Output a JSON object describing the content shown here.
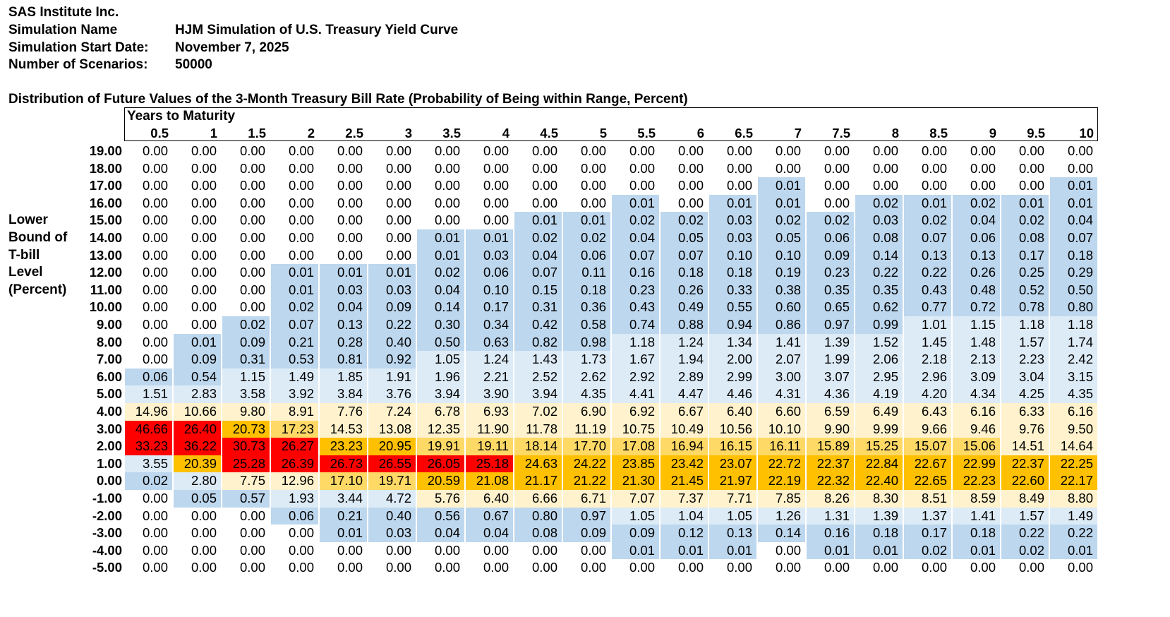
{
  "header": {
    "company": "SAS Institute Inc.",
    "fields": [
      {
        "label": "Simulation Name",
        "value": "HJM Simulation of U.S. Treasury Yield Curve"
      },
      {
        "label": "Simulation Start Date:",
        "value": "November 7, 2025"
      },
      {
        "label": "Number of Scenarios:",
        "value": "50000"
      }
    ]
  },
  "table": {
    "title": "Distribution of Future Values of the 3-Month Treasury Bill Rate (Probability of Being within Range, Percent)",
    "column_header": "Years to Maturity",
    "columns": [
      "0.5",
      "1",
      "1.5",
      "2",
      "2.5",
      "3",
      "3.5",
      "4",
      "4.5",
      "5",
      "5.5",
      "6",
      "6.5",
      "7",
      "7.5",
      "8",
      "8.5",
      "9",
      "9.5",
      "10"
    ],
    "row_header": [
      "Lower",
      "Bound of",
      "T-bill",
      "Level",
      "(Percent)"
    ],
    "color_scale": [
      {
        "min": 25,
        "color": "#ff0000"
      },
      {
        "min": 20,
        "color": "#ffc000"
      },
      {
        "min": 15,
        "color": "#ffd966"
      },
      {
        "min": 5,
        "color": "#fff2cc"
      },
      {
        "min": 1,
        "color": "#ddebf7"
      },
      {
        "min": 0.005,
        "color": "#bdd7ee"
      },
      {
        "min": 0,
        "color": "#ffffff"
      }
    ],
    "rows": [
      {
        "label": "19.00",
        "cells": [
          "0.00",
          "0.00",
          "0.00",
          "0.00",
          "0.00",
          "0.00",
          "0.00",
          "0.00",
          "0.00",
          "0.00",
          "0.00",
          "0.00",
          "0.00",
          "0.00",
          "0.00",
          "0.00",
          "0.00",
          "0.00",
          "0.00",
          "0.00"
        ]
      },
      {
        "label": "18.00",
        "cells": [
          "0.00",
          "0.00",
          "0.00",
          "0.00",
          "0.00",
          "0.00",
          "0.00",
          "0.00",
          "0.00",
          "0.00",
          "0.00",
          "0.00",
          "0.00",
          "0.00",
          "0.00",
          "0.00",
          "0.00",
          "0.00",
          "0.00",
          "0.00"
        ]
      },
      {
        "label": "17.00",
        "cells": [
          "0.00",
          "0.00",
          "0.00",
          "0.00",
          "0.00",
          "0.00",
          "0.00",
          "0.00",
          "0.00",
          "0.00",
          "0.00",
          "0.00",
          "0.00",
          "0.01",
          "0.00",
          "0.00",
          "0.00",
          "0.00",
          "0.00",
          "0.01"
        ]
      },
      {
        "label": "16.00",
        "cells": [
          "0.00",
          "0.00",
          "0.00",
          "0.00",
          "0.00",
          "0.00",
          "0.00",
          "0.00",
          "0.00",
          "0.00",
          "0.01",
          "0.00",
          "0.01",
          "0.01",
          "0.00",
          "0.02",
          "0.01",
          "0.02",
          "0.01",
          "0.01"
        ]
      },
      {
        "label": "15.00",
        "cells": [
          "0.00",
          "0.00",
          "0.00",
          "0.00",
          "0.00",
          "0.00",
          "0.00",
          "0.00",
          "0.01",
          "0.01",
          "0.02",
          "0.02",
          "0.03",
          "0.02",
          "0.02",
          "0.03",
          "0.02",
          "0.04",
          "0.02",
          "0.04"
        ]
      },
      {
        "label": "14.00",
        "cells": [
          "0.00",
          "0.00",
          "0.00",
          "0.00",
          "0.00",
          "0.00",
          "0.01",
          "0.01",
          "0.02",
          "0.02",
          "0.04",
          "0.05",
          "0.03",
          "0.05",
          "0.06",
          "0.08",
          "0.07",
          "0.06",
          "0.08",
          "0.07"
        ]
      },
      {
        "label": "13.00",
        "cells": [
          "0.00",
          "0.00",
          "0.00",
          "0.00",
          "0.00",
          "0.00",
          "0.01",
          "0.03",
          "0.04",
          "0.06",
          "0.07",
          "0.07",
          "0.10",
          "0.10",
          "0.09",
          "0.14",
          "0.13",
          "0.13",
          "0.17",
          "0.18"
        ]
      },
      {
        "label": "12.00",
        "cells": [
          "0.00",
          "0.00",
          "0.00",
          "0.01",
          "0.01",
          "0.01",
          "0.02",
          "0.06",
          "0.07",
          "0.11",
          "0.16",
          "0.18",
          "0.18",
          "0.19",
          "0.23",
          "0.22",
          "0.22",
          "0.26",
          "0.25",
          "0.29"
        ]
      },
      {
        "label": "11.00",
        "cells": [
          "0.00",
          "0.00",
          "0.00",
          "0.01",
          "0.03",
          "0.03",
          "0.04",
          "0.10",
          "0.15",
          "0.18",
          "0.23",
          "0.26",
          "0.33",
          "0.38",
          "0.35",
          "0.35",
          "0.43",
          "0.48",
          "0.52",
          "0.50"
        ]
      },
      {
        "label": "10.00",
        "cells": [
          "0.00",
          "0.00",
          "0.00",
          "0.02",
          "0.04",
          "0.09",
          "0.14",
          "0.17",
          "0.31",
          "0.36",
          "0.43",
          "0.49",
          "0.55",
          "0.60",
          "0.65",
          "0.62",
          "0.77",
          "0.72",
          "0.78",
          "0.80"
        ]
      },
      {
        "label": "9.00",
        "cells": [
          "0.00",
          "0.00",
          "0.02",
          "0.07",
          "0.13",
          "0.22",
          "0.30",
          "0.34",
          "0.42",
          "0.58",
          "0.74",
          "0.88",
          "0.94",
          "0.86",
          "0.97",
          "0.99",
          "1.01",
          "1.15",
          "1.18",
          "1.18"
        ]
      },
      {
        "label": "8.00",
        "cells": [
          "0.00",
          "0.01",
          "0.09",
          "0.21",
          "0.28",
          "0.40",
          "0.50",
          "0.63",
          "0.82",
          "0.98",
          "1.18",
          "1.24",
          "1.34",
          "1.41",
          "1.39",
          "1.52",
          "1.45",
          "1.48",
          "1.57",
          "1.74"
        ]
      },
      {
        "label": "7.00",
        "cells": [
          "0.00",
          "0.09",
          "0.31",
          "0.53",
          "0.81",
          "0.92",
          "1.05",
          "1.24",
          "1.43",
          "1.73",
          "1.67",
          "1.94",
          "2.00",
          "2.07",
          "1.99",
          "2.06",
          "2.18",
          "2.13",
          "2.23",
          "2.42"
        ]
      },
      {
        "label": "6.00",
        "cells": [
          "0.06",
          "0.54",
          "1.15",
          "1.49",
          "1.85",
          "1.91",
          "1.96",
          "2.21",
          "2.52",
          "2.62",
          "2.92",
          "2.89",
          "2.99",
          "3.00",
          "3.07",
          "2.95",
          "2.96",
          "3.09",
          "3.04",
          "3.15"
        ]
      },
      {
        "label": "5.00",
        "cells": [
          "1.51",
          "2.83",
          "3.58",
          "3.92",
          "3.84",
          "3.76",
          "3.94",
          "3.90",
          "3.94",
          "4.35",
          "4.41",
          "4.47",
          "4.46",
          "4.31",
          "4.36",
          "4.19",
          "4.20",
          "4.34",
          "4.25",
          "4.35"
        ]
      },
      {
        "label": "4.00",
        "cells": [
          "14.96",
          "10.66",
          "9.80",
          "8.91",
          "7.76",
          "7.24",
          "6.78",
          "6.93",
          "7.02",
          "6.90",
          "6.92",
          "6.67",
          "6.40",
          "6.60",
          "6.59",
          "6.49",
          "6.43",
          "6.16",
          "6.33",
          "6.16"
        ]
      },
      {
        "label": "3.00",
        "cells": [
          "46.66",
          "26.40",
          "20.73",
          "17.23",
          "14.53",
          "13.08",
          "12.35",
          "11.90",
          "11.78",
          "11.19",
          "10.75",
          "10.49",
          "10.56",
          "10.10",
          "9.90",
          "9.99",
          "9.66",
          "9.46",
          "9.76",
          "9.50"
        ]
      },
      {
        "label": "2.00",
        "cells": [
          "33.23",
          "36.22",
          "30.73",
          "26.27",
          "23.23",
          "20.95",
          "19.91",
          "19.11",
          "18.14",
          "17.70",
          "17.08",
          "16.94",
          "16.15",
          "16.11",
          "15.89",
          "15.25",
          "15.07",
          "15.06",
          "14.51",
          "14.64"
        ]
      },
      {
        "label": "1.00",
        "cells": [
          "3.55",
          "20.39",
          "25.28",
          "26.39",
          "26.73",
          "26.55",
          "26.05",
          "25.18",
          "24.63",
          "24.22",
          "23.85",
          "23.42",
          "23.07",
          "22.72",
          "22.37",
          "22.84",
          "22.67",
          "22.99",
          "22.37",
          "22.25"
        ]
      },
      {
        "label": "0.00",
        "cells": [
          "0.02",
          "2.80",
          "7.75",
          "12.96",
          "17.10",
          "19.71",
          "20.59",
          "21.08",
          "21.17",
          "21.22",
          "21.30",
          "21.45",
          "21.97",
          "22.19",
          "22.32",
          "22.40",
          "22.65",
          "22.23",
          "22.60",
          "22.17"
        ]
      },
      {
        "label": "-1.00",
        "cells": [
          "0.00",
          "0.05",
          "0.57",
          "1.93",
          "3.44",
          "4.72",
          "5.76",
          "6.40",
          "6.66",
          "6.71",
          "7.07",
          "7.37",
          "7.71",
          "7.85",
          "8.26",
          "8.30",
          "8.51",
          "8.59",
          "8.49",
          "8.80"
        ]
      },
      {
        "label": "-2.00",
        "cells": [
          "0.00",
          "0.00",
          "0.00",
          "0.06",
          "0.21",
          "0.40",
          "0.56",
          "0.67",
          "0.80",
          "0.97",
          "1.05",
          "1.04",
          "1.05",
          "1.26",
          "1.31",
          "1.39",
          "1.37",
          "1.41",
          "1.57",
          "1.49"
        ]
      },
      {
        "label": "-3.00",
        "cells": [
          "0.00",
          "0.00",
          "0.00",
          "0.00",
          "0.01",
          "0.03",
          "0.04",
          "0.04",
          "0.08",
          "0.09",
          "0.09",
          "0.12",
          "0.13",
          "0.14",
          "0.16",
          "0.18",
          "0.17",
          "0.18",
          "0.22",
          "0.22"
        ]
      },
      {
        "label": "-4.00",
        "cells": [
          "0.00",
          "0.00",
          "0.00",
          "0.00",
          "0.00",
          "0.00",
          "0.00",
          "0.00",
          "0.00",
          "0.00",
          "0.01",
          "0.01",
          "0.01",
          "0.00",
          "0.01",
          "0.01",
          "0.02",
          "0.01",
          "0.02",
          "0.01"
        ]
      },
      {
        "label": "-5.00",
        "cells": [
          "0.00",
          "0.00",
          "0.00",
          "0.00",
          "0.00",
          "0.00",
          "0.00",
          "0.00",
          "0.00",
          "0.00",
          "0.00",
          "0.00",
          "0.00",
          "0.00",
          "0.00",
          "0.00",
          "0.00",
          "0.00",
          "0.00",
          "0.00"
        ]
      }
    ]
  }
}
